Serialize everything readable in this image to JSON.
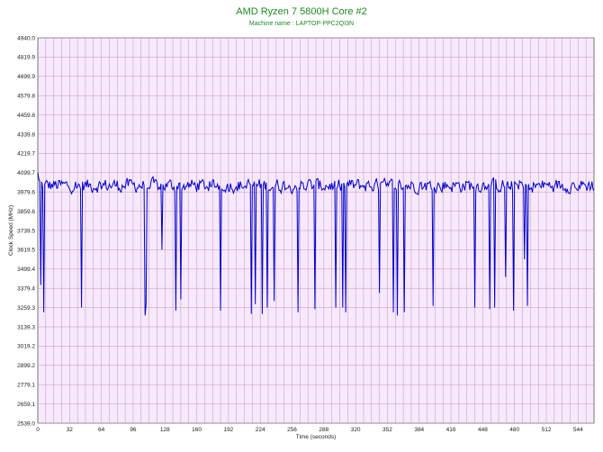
{
  "chart_data": {
    "type": "line",
    "title": "AMD Ryzen 7 5800H Core #2",
    "subtitle": "Machine name : LAPTOP-PPC2QI3N",
    "xlabel": "Time (seconds)",
    "ylabel": "Clock Speed (MHz)",
    "xlim": [
      0,
      560
    ],
    "ylim": [
      2539.0,
      4940.0
    ],
    "x_ticks": [
      0,
      32,
      64,
      96,
      128,
      160,
      192,
      224,
      256,
      288,
      320,
      352,
      384,
      416,
      448,
      480,
      512,
      544
    ],
    "y_ticks": [
      2539.0,
      2659.1,
      2779.1,
      2899.2,
      3019.2,
      3139.3,
      3259.3,
      3379.4,
      3499.4,
      3619.5,
      3739.5,
      3859.6,
      3979.6,
      4099.7,
      4219.7,
      4339.8,
      4459.8,
      4579.8,
      4699.9,
      4819.9,
      4940.0
    ],
    "grid": true,
    "line_color": "#0000cc",
    "background_color": "#f8e8fb",
    "grid_color": "#b89ab8",
    "baseline_range": [
      3960,
      4080
    ],
    "dips": [
      [
        3,
        3400
      ],
      [
        6,
        3230
      ],
      [
        44,
        3260
      ],
      [
        108,
        3210
      ],
      [
        109,
        3280
      ],
      [
        125,
        3620
      ],
      [
        139,
        3240
      ],
      [
        144,
        3310
      ],
      [
        184,
        3240
      ],
      [
        215,
        3220
      ],
      [
        219,
        3280
      ],
      [
        226,
        3220
      ],
      [
        231,
        3260
      ],
      [
        238,
        3300
      ],
      [
        262,
        3230
      ],
      [
        279,
        3250
      ],
      [
        300,
        3260
      ],
      [
        307,
        3260
      ],
      [
        310,
        3230
      ],
      [
        344,
        3350
      ],
      [
        358,
        3230
      ],
      [
        362,
        3210
      ],
      [
        369,
        3230
      ],
      [
        398,
        3270
      ],
      [
        440,
        3260
      ],
      [
        455,
        3250
      ],
      [
        460,
        3260
      ],
      [
        471,
        3450
      ],
      [
        479,
        3240
      ],
      [
        490,
        3560
      ],
      [
        493,
        3270
      ]
    ]
  }
}
